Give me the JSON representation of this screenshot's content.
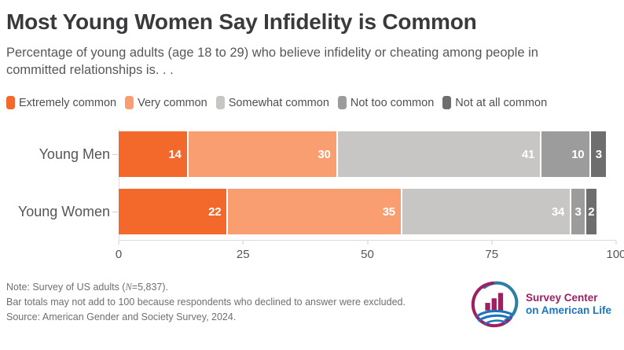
{
  "header": {
    "title": "Most Young Women Say Infidelity is Common",
    "subtitle_lines": [
      "Percentage of young adults (age 18 to 29) who believe infidelity or cheating among people in",
      "committed relationships is. . ."
    ]
  },
  "chart_data": {
    "type": "bar",
    "variant": "horizontal-stacked",
    "stacked": true,
    "categories": [
      "Young Men",
      "Young Women"
    ],
    "series": [
      {
        "name": "Extremely common",
        "color": "#F2692B",
        "values": [
          14,
          22
        ]
      },
      {
        "name": "Very common",
        "color": "#F89E71",
        "values": [
          30,
          35
        ]
      },
      {
        "name": "Somewhat common",
        "color": "#C7C6C5",
        "values": [
          41,
          34
        ]
      },
      {
        "name": "Not too common",
        "color": "#9D9C9C",
        "values": [
          10,
          3
        ]
      },
      {
        "name": "Not at all common",
        "color": "#6F6E6F",
        "values": [
          3,
          2
        ]
      }
    ],
    "xlim": [
      0,
      100
    ],
    "x_ticks": [
      0,
      25,
      50,
      75,
      100
    ],
    "legend_position": "top",
    "grid": false,
    "bar_label_color": "#FFFFFF",
    "small_segment_threshold": 4
  },
  "footer": {
    "note1_prefix": "Note: Survey of US adults (",
    "note1_n": "N",
    "note1_suffix": "=5,837).",
    "note2": "Bar totals may not add to 100 because respondents who declined to answer were excluded.",
    "note3": "Source: American Gender and Society Survey, 2024.",
    "logo": {
      "line1": "Survey Center",
      "line2": "on American Life",
      "magenta": "#9E2063",
      "blue": "#1C75BC",
      "teal": "#2E7EA7"
    }
  }
}
